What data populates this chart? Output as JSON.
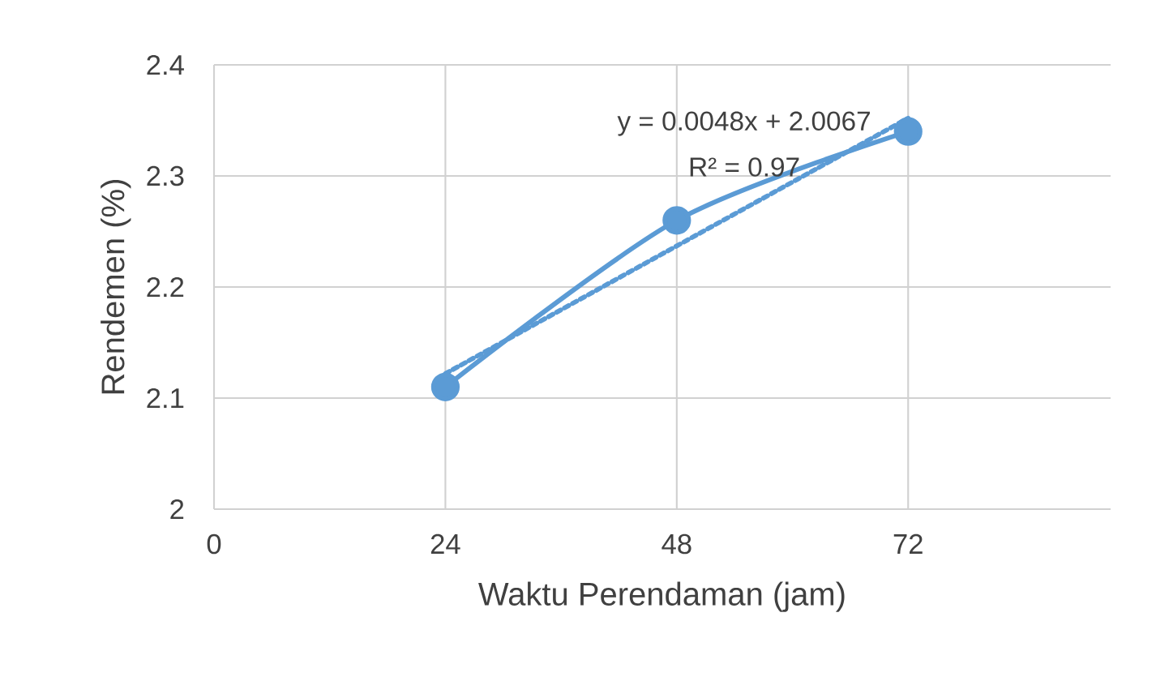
{
  "chart_data": {
    "type": "line",
    "xlabel": "Waktu Perendaman (jam)",
    "ylabel": "Rendemen (%)",
    "x": [
      24,
      48,
      72
    ],
    "series": [
      {
        "color": "#5b9bd5",
        "values": [
          2.11,
          2.26,
          2.34
        ],
        "marker": "circle",
        "line_style": "solid"
      },
      {
        "x": [
          24,
          72
        ],
        "values": [
          2.122,
          2.352
        ],
        "color": "#5b9bd5",
        "marker": "none",
        "line_style": "dotted"
      }
    ],
    "annotations": [
      "y = 0.0048x + 2.0067",
      "R² = 0.97"
    ],
    "xlim": [
      0,
      93
    ],
    "ylim": [
      2,
      2.4
    ],
    "xticks": [
      0,
      24,
      48,
      72
    ],
    "yticks": [
      2,
      2.1,
      2.2,
      2.3,
      2.4
    ],
    "grid": true
  }
}
